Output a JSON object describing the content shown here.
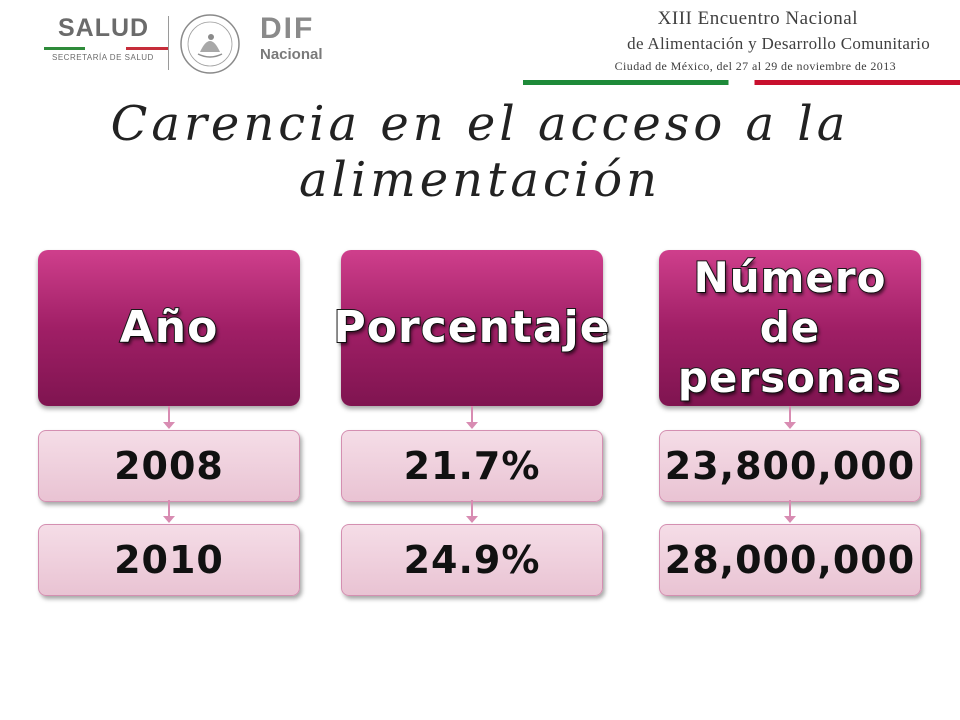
{
  "header": {
    "salud_logo_text": "SALUD",
    "salud_subtitle": "SECRETARÍA DE SALUD",
    "dif_logo_text": "DIF",
    "dif_subtitle": "Nacional",
    "event_line1": "XIII Encuentro Nacional",
    "event_line2": "de Alimentación y Desarrollo Comunitario",
    "event_line3": "Ciudad de México, del 27 al 29 de noviembre de 2013",
    "colors": {
      "green": "#1e8a39",
      "red": "#c8102e",
      "gray": "#6b6b6b"
    }
  },
  "title": {
    "line1": "Carencia en el acceso a la",
    "line2": "alimentación"
  },
  "diagram": {
    "columns": [
      {
        "header": "Año",
        "values": [
          "2008",
          "2010"
        ]
      },
      {
        "header": "Porcentaje",
        "values": [
          "21.7%",
          "24.9%"
        ]
      },
      {
        "header_line1": "Número de",
        "header_line2": "personas",
        "values": [
          "23,800,000",
          "28,000,000"
        ]
      }
    ],
    "colors": {
      "header_fill": "#a01f66",
      "value_fill": "#f0d3df",
      "connector": "#d88cb2"
    }
  }
}
